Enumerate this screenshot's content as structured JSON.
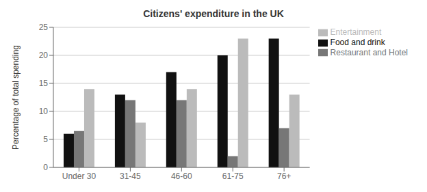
{
  "chart_data": {
    "type": "bar",
    "title": "Citizens' expenditure in the UK",
    "ylabel": "Percentage of total spending",
    "categories": [
      "Under 30",
      "31-45",
      "46-60",
      "61-75",
      "76+"
    ],
    "series": [
      {
        "name": "Food and drink",
        "color": "#111111",
        "values": [
          6,
          13,
          17,
          20,
          23
        ]
      },
      {
        "name": "Restaurant and Hotel",
        "color": "#777777",
        "values": [
          6.5,
          12,
          12,
          2,
          7
        ]
      },
      {
        "name": "Entertainment",
        "color": "#bbbbbb",
        "values": [
          14,
          8,
          14,
          23,
          13
        ]
      }
    ],
    "ylim": [
      0,
      25
    ],
    "yticks": [
      0,
      5,
      10,
      15,
      20,
      25
    ],
    "grid": true,
    "legend": "right"
  }
}
